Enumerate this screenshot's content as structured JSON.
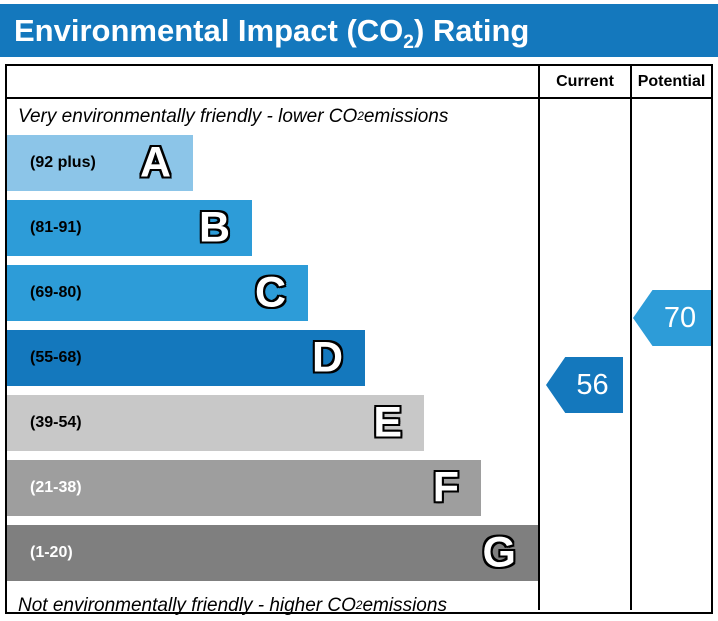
{
  "title": {
    "pre": "Environmental Impact (CO",
    "sub": "2",
    "post": ") Rating"
  },
  "table": {
    "columns": {
      "current": "Current",
      "potential": "Potential"
    }
  },
  "notes": {
    "top_pre": "Very environmentally friendly - lower CO",
    "top_sub": "2",
    "top_post": " emissions",
    "bottom_pre": "Not environmentally friendly - higher CO",
    "bottom_sub": "2",
    "bottom_post": " emissions"
  },
  "bands": [
    {
      "letter": "A",
      "range": "(92 plus)",
      "color": "#8cc5e8"
    },
    {
      "letter": "B",
      "range": "(81-91)",
      "color": "#2d9cd8"
    },
    {
      "letter": "C",
      "range": "(69-80)",
      "color": "#2d9cd8"
    },
    {
      "letter": "D",
      "range": "(55-68)",
      "color": "#1478bd"
    },
    {
      "letter": "E",
      "range": "(39-54)",
      "color": "#c8c8c8"
    },
    {
      "letter": "F",
      "range": "(21-38)",
      "color": "#9e9e9e"
    },
    {
      "letter": "G",
      "range": "(1-20)",
      "color": "#7f7f7f"
    }
  ],
  "ratings": {
    "current": {
      "value": "56",
      "band": "D",
      "color": "#1478bd"
    },
    "potential": {
      "value": "70",
      "band": "C",
      "color": "#2d9cd8"
    }
  },
  "colors": {
    "title_bar": "#1478bd",
    "border": "#000000",
    "background": "#ffffff"
  },
  "chart_data": {
    "type": "bar",
    "title": "Environmental Impact (CO2) Rating",
    "categories": [
      "A",
      "B",
      "C",
      "D",
      "E",
      "F",
      "G"
    ],
    "band_ranges": [
      "92 plus",
      "81-91",
      "69-80",
      "55-68",
      "39-54",
      "21-38",
      "1-20"
    ],
    "band_colors": [
      "#8cc5e8",
      "#2d9cd8",
      "#2d9cd8",
      "#1478bd",
      "#c8c8c8",
      "#9e9e9e",
      "#7f7f7f"
    ],
    "scale": [
      1,
      100
    ],
    "columns": [
      "Current",
      "Potential"
    ],
    "series": [
      {
        "name": "Current",
        "value": 56,
        "band": "D",
        "color": "#1478bd"
      },
      {
        "name": "Potential",
        "value": 70,
        "band": "C",
        "color": "#2d9cd8"
      }
    ],
    "top_annotation": "Very environmentally friendly - lower CO2 emissions",
    "bottom_annotation": "Not environmentally friendly - higher CO2 emissions",
    "legend_position": "none",
    "grid": false
  }
}
